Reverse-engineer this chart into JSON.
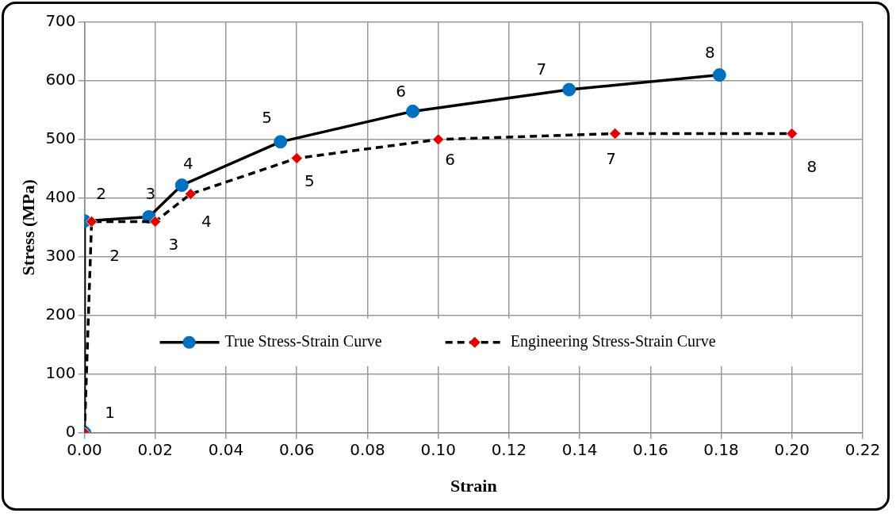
{
  "chart_data": {
    "type": "line",
    "xlabel": "Strain",
    "ylabel": "Stress (MPa)",
    "xlim": [
      0,
      0.22
    ],
    "xticks": [
      {
        "value": 0,
        "label": "0.00"
      },
      {
        "value": 0.02,
        "label": "0.02"
      },
      {
        "value": 0.04,
        "label": "0.04"
      },
      {
        "value": 0.06,
        "label": "0.06"
      },
      {
        "value": 0.08,
        "label": "0.08"
      },
      {
        "value": 0.1,
        "label": "0.10"
      },
      {
        "value": 0.12,
        "label": "0.12"
      },
      {
        "value": 0.14,
        "label": "0.14"
      },
      {
        "value": 0.16,
        "label": "0.16"
      },
      {
        "value": 0.18,
        "label": "0.18"
      },
      {
        "value": 0.2,
        "label": "0.20"
      },
      {
        "value": 0.22,
        "label": "0.22"
      }
    ],
    "ylim": [
      0,
      700
    ],
    "yticks": [
      0,
      100,
      200,
      300,
      400,
      500,
      600,
      700
    ],
    "grid": true,
    "legend": "bottom",
    "series": [
      {
        "name": "True Stress-Strain Curve",
        "color": "#0070c0",
        "marker": "circle",
        "line_style": "solid",
        "x": [
          0,
          0,
          0.0182,
          0.0275,
          0.0554,
          0.0928,
          0.137,
          0.1795
        ],
        "values": [
          0,
          361,
          368,
          422,
          496,
          548,
          585,
          610
        ]
      },
      {
        "name": "Engineering Stress-Strain Curve",
        "color": "#e00000",
        "marker": "diamond",
        "line_style": "dashed",
        "x": [
          0,
          0.002,
          0.02,
          0.03,
          0.06,
          0.1,
          0.15,
          0.2
        ],
        "values": [
          0,
          360,
          360,
          407,
          468,
          500,
          510,
          510
        ]
      }
    ],
    "annotations": [
      {
        "text": "1",
        "x": 0,
        "y": 0
      },
      {
        "text": "2",
        "x": 0,
        "y": 361
      },
      {
        "text": "2",
        "x": 0.002,
        "y": 360
      },
      {
        "text": "3",
        "x": 0.0182,
        "y": 368
      },
      {
        "text": "3",
        "x": 0.02,
        "y": 360
      },
      {
        "text": "4",
        "x": 0.0275,
        "y": 422
      },
      {
        "text": "4",
        "x": 0.03,
        "y": 407
      },
      {
        "text": "5",
        "x": 0.0554,
        "y": 496
      },
      {
        "text": "5",
        "x": 0.06,
        "y": 468
      },
      {
        "text": "6",
        "x": 0.0928,
        "y": 548
      },
      {
        "text": "6",
        "x": 0.1,
        "y": 500
      },
      {
        "text": "7",
        "x": 0.137,
        "y": 585
      },
      {
        "text": "7",
        "x": 0.15,
        "y": 510
      },
      {
        "text": "8",
        "x": 0.1795,
        "y": 610
      },
      {
        "text": "8",
        "x": 0.2,
        "y": 510
      }
    ]
  }
}
